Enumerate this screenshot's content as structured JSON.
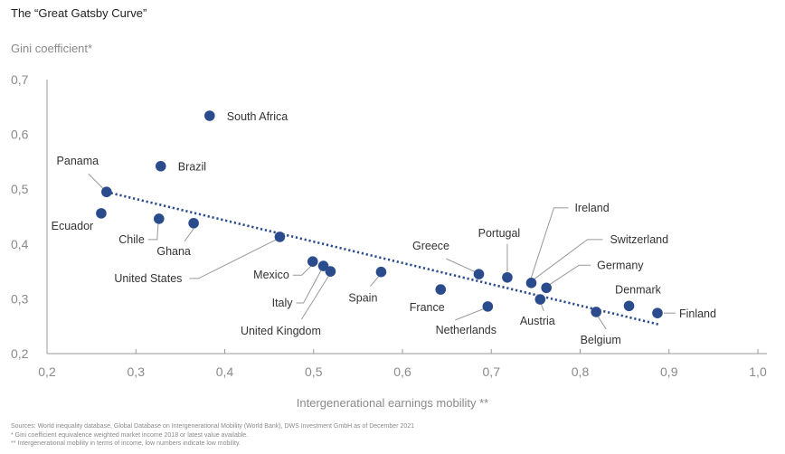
{
  "chart_data": {
    "type": "scatter",
    "title": "The “Great Gatsby Curve”",
    "ylabel": "Gini coefficient*",
    "xlabel": "Intergenerational earnings mobility **",
    "xlim": [
      0.2,
      1.0
    ],
    "ylim": [
      0.2,
      0.7
    ],
    "xticks": [
      "0,2",
      "0,3",
      "0,4",
      "0,5",
      "0,6",
      "0,7",
      "0,8",
      "0,9",
      "1,0"
    ],
    "xtick_values": [
      0.2,
      0.3,
      0.4,
      0.5,
      0.6,
      0.7,
      0.8,
      0.9,
      1.0
    ],
    "yticks": [
      "0,2",
      "0,3",
      "0,4",
      "0,5",
      "0,6",
      "0,7"
    ],
    "ytick_values": [
      0.2,
      0.3,
      0.4,
      0.5,
      0.6,
      0.7
    ],
    "grid": false,
    "marker_color": "#2b4c8c",
    "trendline": {
      "style": "dotted",
      "from": [
        0.267,
        0.495
      ],
      "to": [
        0.889,
        0.253
      ],
      "color": "#2b4c8c"
    },
    "points": [
      {
        "label": "South Africa",
        "x": 0.383,
        "y": 0.634
      },
      {
        "label": "Brazil",
        "x": 0.328,
        "y": 0.542
      },
      {
        "label": "Panama",
        "x": 0.267,
        "y": 0.495
      },
      {
        "label": "Ecuador",
        "x": 0.261,
        "y": 0.456
      },
      {
        "label": "Chile",
        "x": 0.326,
        "y": 0.446
      },
      {
        "label": "Ghana",
        "x": 0.365,
        "y": 0.438
      },
      {
        "label": "United States",
        "x": 0.462,
        "y": 0.413
      },
      {
        "label": "Mexico",
        "x": 0.499,
        "y": 0.368
      },
      {
        "label": "Italy",
        "x": 0.511,
        "y": 0.36
      },
      {
        "label": "United Kingdom",
        "x": 0.519,
        "y": 0.35
      },
      {
        "label": "Spain",
        "x": 0.576,
        "y": 0.349
      },
      {
        "label": "France",
        "x": 0.643,
        "y": 0.317
      },
      {
        "label": "Greece",
        "x": 0.686,
        "y": 0.345
      },
      {
        "label": "Portugal",
        "x": 0.718,
        "y": 0.339
      },
      {
        "label": "Netherlands",
        "x": 0.696,
        "y": 0.286
      },
      {
        "label": "Ireland",
        "x": 0.745,
        "y": 0.329
      },
      {
        "label": "Switzerland",
        "x": 0.745,
        "y": 0.329
      },
      {
        "label": "Germany",
        "x": 0.762,
        "y": 0.32
      },
      {
        "label": "Austria",
        "x": 0.755,
        "y": 0.299
      },
      {
        "label": "Belgium",
        "x": 0.818,
        "y": 0.276
      },
      {
        "label": "Denmark",
        "x": 0.855,
        "y": 0.287
      },
      {
        "label": "Finland",
        "x": 0.887,
        "y": 0.274
      }
    ],
    "notes": [
      "Sources: World inequality database, Global Database on Intergenerational Mobility (World Bank), DWS Investment GmbH as of December 2021",
      "* Gini coefficient equivalence weighted market income 2018 or latest value available.",
      "** Intergenerational mobility in terms of income, low numbers indicate low mobility."
    ]
  }
}
